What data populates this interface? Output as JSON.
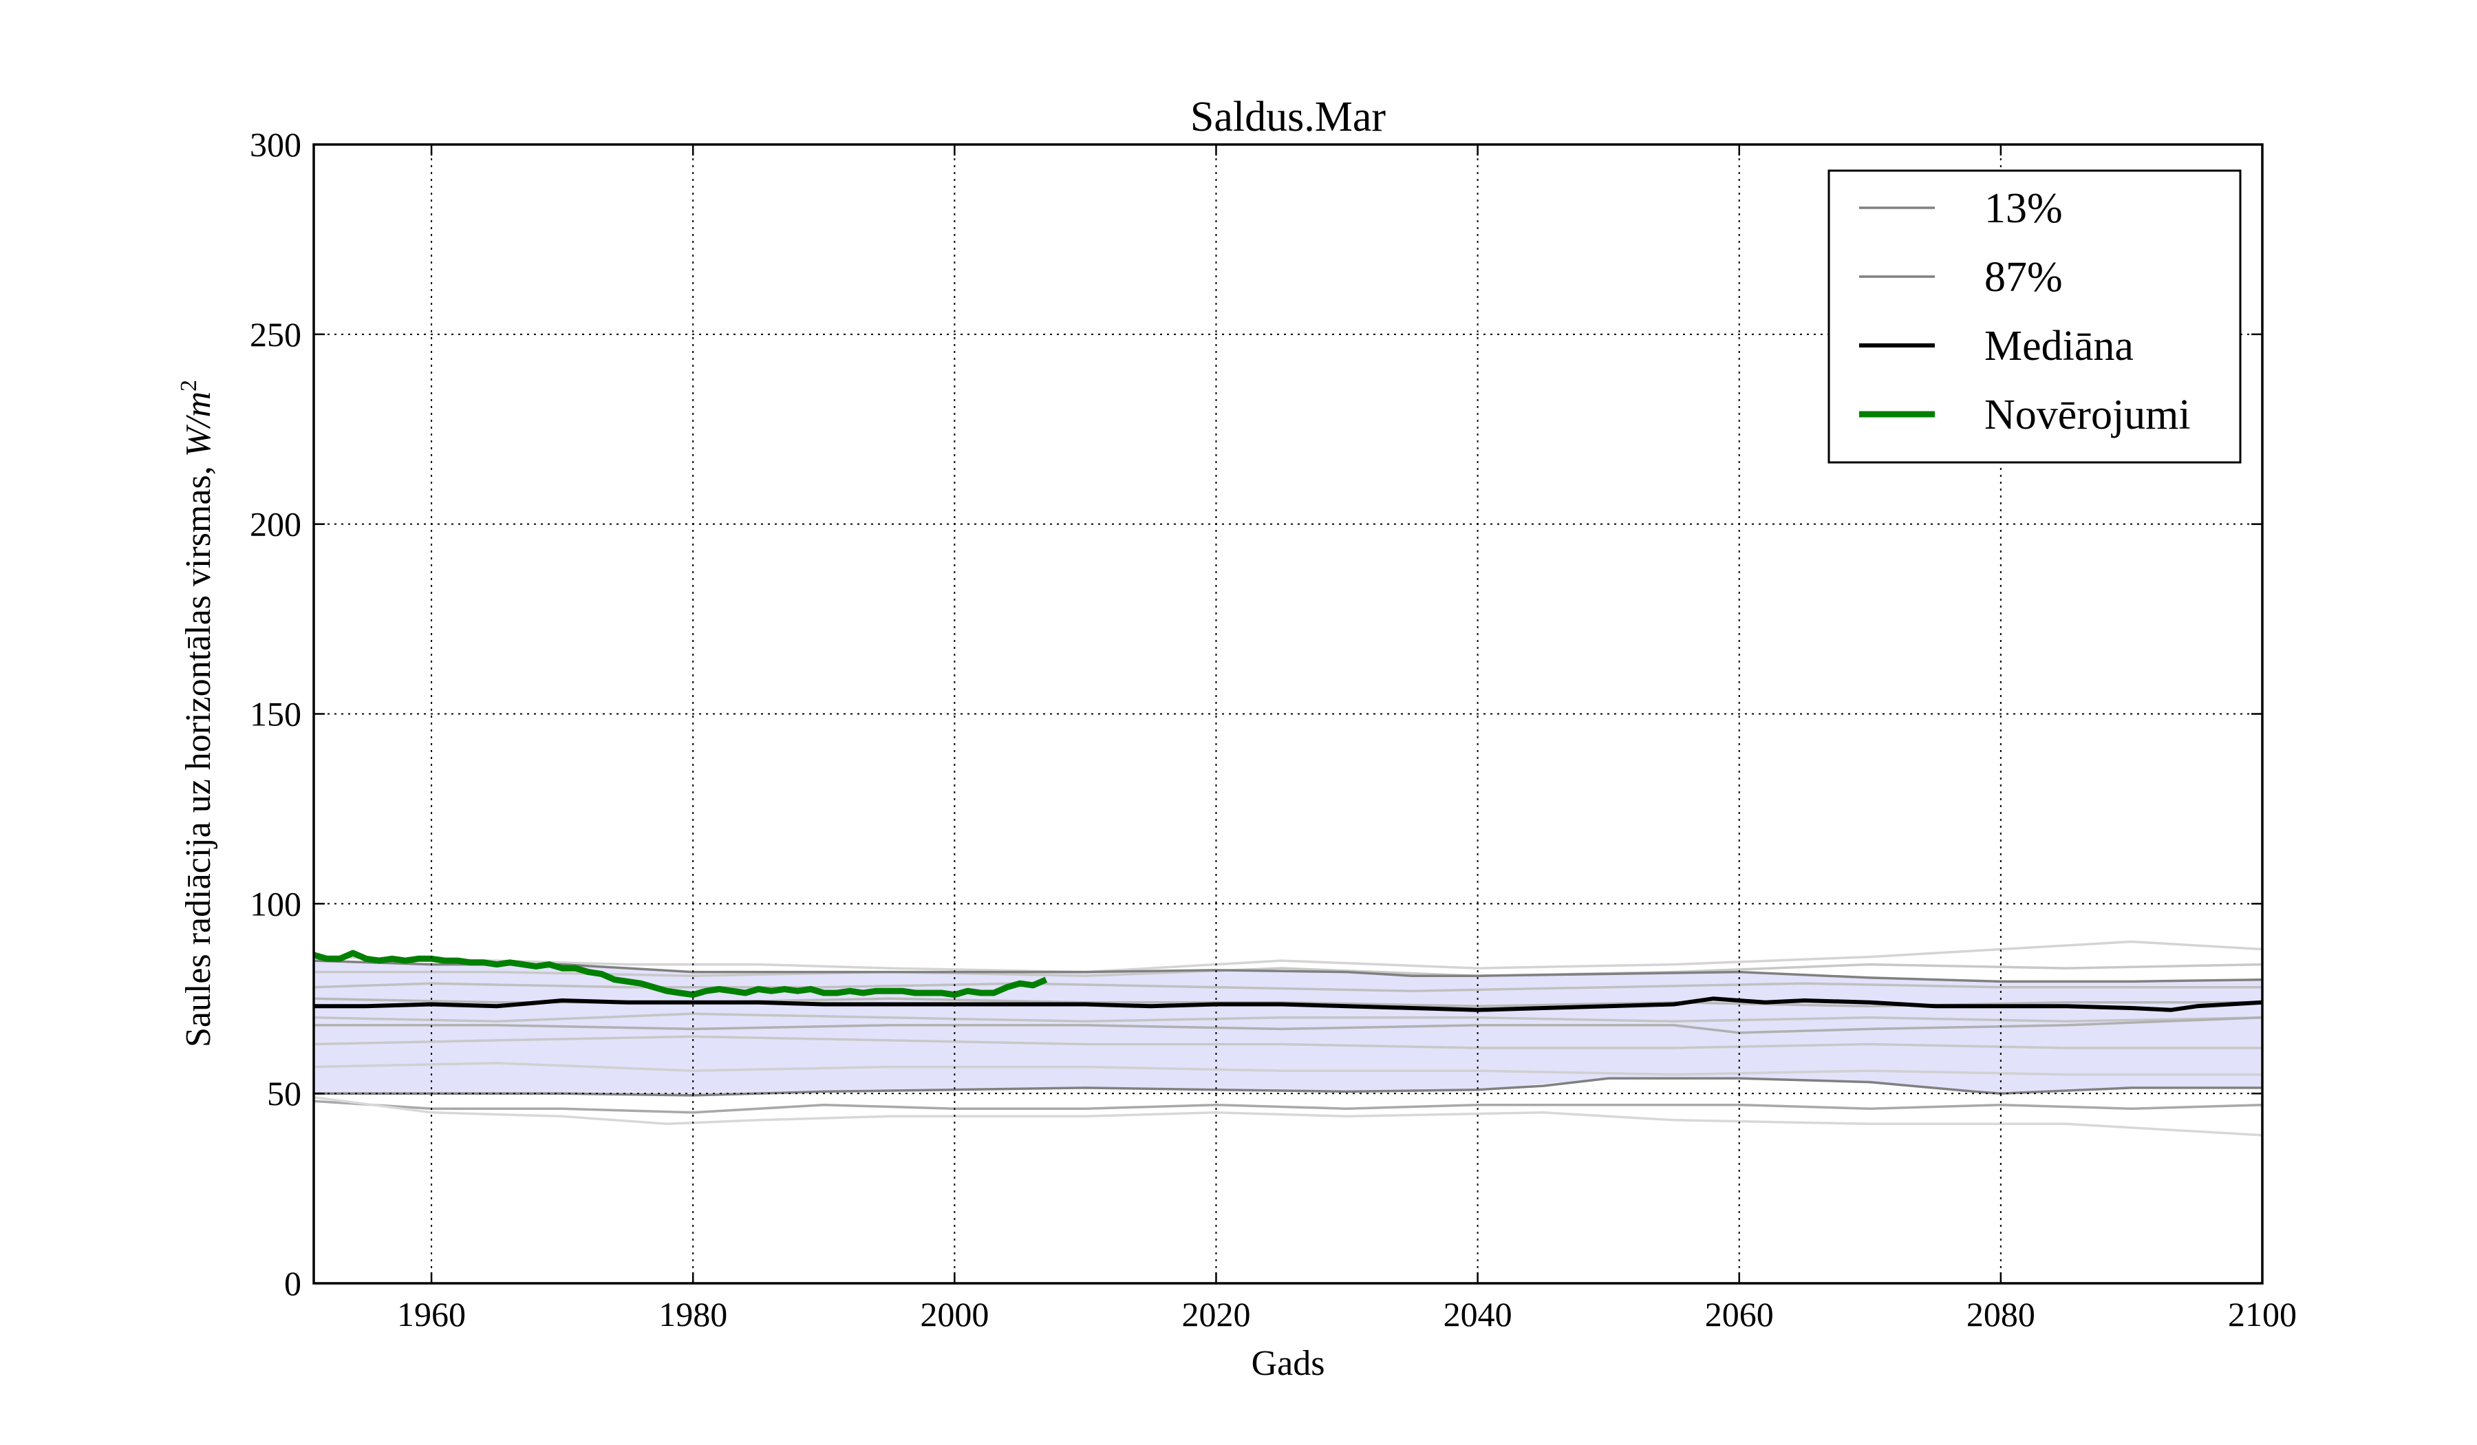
{
  "chart_data": {
    "type": "line",
    "title": "Saldus.Mar",
    "xlabel": "Gads",
    "ylabel": "Saules radiācija uz horizontālas virsmas, ",
    "ylabel_unit": "W/m",
    "ylabel_unit_exp": "2",
    "xlim": [
      1951,
      2100
    ],
    "ylim": [
      0,
      300
    ],
    "xticks": [
      1960,
      1980,
      2000,
      2020,
      2040,
      2060,
      2080,
      2100
    ],
    "yticks": [
      0,
      50,
      100,
      150,
      200,
      250,
      300
    ],
    "grid": true,
    "legend_position": "top-right",
    "band": {
      "color": "#e2e2fb",
      "x": [
        1951,
        1960,
        1970,
        1980,
        1990,
        2000,
        2010,
        2020,
        2030,
        2040,
        2050,
        2060,
        2070,
        2080,
        2090,
        2100
      ],
      "lower": [
        50,
        50,
        50,
        49.5,
        50.5,
        51,
        51.5,
        51,
        50.5,
        51,
        54,
        54,
        53,
        50,
        51.5,
        51.5
      ],
      "upper": [
        85,
        84,
        84,
        82,
        82,
        82,
        82,
        82.5,
        82,
        81,
        81.5,
        82,
        80.5,
        79.5,
        79.5,
        80
      ]
    },
    "series": [
      {
        "name": "13%",
        "role": "legend",
        "color": "#808080",
        "x": [
          1951,
          1960,
          1970,
          1980,
          1990,
          2000,
          2010,
          2020,
          2030,
          2040,
          2045,
          2050,
          2060,
          2070,
          2078,
          2080,
          2090,
          2100
        ],
        "y": [
          50,
          50,
          50,
          49.5,
          50.5,
          51,
          51.5,
          51,
          50.5,
          51,
          52,
          54,
          54,
          53,
          50.5,
          50,
          51.5,
          51.5
        ]
      },
      {
        "name": "87%",
        "role": "legend",
        "color": "#808080",
        "x": [
          1951,
          1960,
          1970,
          1980,
          1990,
          2000,
          2010,
          2020,
          2030,
          2035,
          2040,
          2050,
          2060,
          2070,
          2080,
          2090,
          2100
        ],
        "y": [
          85,
          84,
          84,
          82,
          82,
          82,
          82,
          82.5,
          82,
          81,
          81,
          81.5,
          82,
          80.5,
          79.5,
          79.5,
          80
        ]
      },
      {
        "name": "Mediāna",
        "role": "legend",
        "color": "#000000",
        "x": [
          1951,
          1955,
          1960,
          1965,
          1970,
          1975,
          1980,
          1985,
          1990,
          1995,
          2000,
          2005,
          2010,
          2015,
          2020,
          2025,
          2030,
          2035,
          2040,
          2045,
          2050,
          2055,
          2058,
          2062,
          2065,
          2070,
          2075,
          2080,
          2085,
          2090,
          2093,
          2095,
          2100
        ],
        "y": [
          73,
          73,
          73.5,
          73,
          74.5,
          74,
          74,
          74,
          73.5,
          73.5,
          73.5,
          73.5,
          73.5,
          73,
          73.5,
          73.5,
          73,
          72.5,
          72,
          72.5,
          73,
          73.5,
          75,
          74,
          74.5,
          74,
          73,
          73,
          73,
          72.5,
          72,
          73,
          74
        ]
      },
      {
        "name": "Novērojumi",
        "role": "legend",
        "color": "#008000",
        "x": [
          1951,
          1952,
          1953,
          1954,
          1955,
          1956,
          1957,
          1958,
          1959,
          1960,
          1961,
          1962,
          1963,
          1964,
          1965,
          1966,
          1967,
          1968,
          1969,
          1970,
          1971,
          1972,
          1973,
          1974,
          1975,
          1976,
          1977,
          1978,
          1979,
          1980,
          1981,
          1982,
          1983,
          1984,
          1985,
          1986,
          1987,
          1988,
          1989,
          1990,
          1991,
          1992,
          1993,
          1994,
          1995,
          1996,
          1997,
          1998,
          1999,
          2000,
          2001,
          2002,
          2003,
          2004,
          2005,
          2006,
          2007
        ],
        "y": [
          86.5,
          85.5,
          85.5,
          87,
          85.5,
          85,
          85.5,
          85,
          85.5,
          85.5,
          85,
          85,
          84.5,
          84.5,
          84,
          84.5,
          84,
          83.5,
          84,
          83,
          83,
          82,
          81.5,
          80,
          79.5,
          79,
          78,
          77,
          76.5,
          76,
          77,
          77.5,
          77,
          76.5,
          77.5,
          77,
          77.5,
          77,
          77.5,
          76.5,
          76.5,
          77,
          76.5,
          77,
          77,
          77,
          76.5,
          76.5,
          76.5,
          76,
          77,
          76.5,
          76.5,
          78,
          79,
          78.5,
          80
        ]
      },
      {
        "role": "member",
        "color": "#d4d4d4",
        "x": [
          1951,
          1965,
          1975,
          1985,
          1995,
          2010,
          2025,
          2040,
          2055,
          2070,
          2085,
          2090,
          2100
        ],
        "y": [
          86,
          85,
          84,
          84,
          83,
          82,
          85,
          83,
          84,
          86,
          89,
          90,
          88
        ]
      },
      {
        "role": "member",
        "color": "#c8c8c8",
        "x": [
          1951,
          1965,
          1980,
          1995,
          2010,
          2025,
          2040,
          2055,
          2070,
          2085,
          2100
        ],
        "y": [
          82,
          82,
          81,
          82,
          81,
          83,
          81,
          82,
          84,
          83,
          84
        ]
      },
      {
        "role": "member",
        "color": "#c0c0c0",
        "x": [
          1951,
          1960,
          1975,
          1990,
          2005,
          2020,
          2035,
          2050,
          2065,
          2080,
          2100
        ],
        "y": [
          78,
          79,
          78,
          78,
          79,
          78,
          77,
          78,
          79,
          78,
          78
        ]
      },
      {
        "role": "member",
        "color": "#b8b8b8",
        "x": [
          1951,
          1965,
          1980,
          1995,
          2010,
          2025,
          2040,
          2055,
          2070,
          2085,
          2100
        ],
        "y": [
          75,
          74,
          74,
          75,
          74,
          74,
          73,
          74,
          73,
          74,
          74
        ]
      },
      {
        "role": "member",
        "color": "#c4c4c4",
        "x": [
          1951,
          1965,
          1980,
          1995,
          2010,
          2025,
          2040,
          2055,
          2070,
          2085,
          2100
        ],
        "y": [
          70,
          69,
          71,
          70,
          69,
          70,
          70,
          69,
          70,
          69,
          70
        ]
      },
      {
        "role": "member",
        "color": "#b0b0b0",
        "x": [
          1951,
          1965,
          1980,
          1995,
          2010,
          2025,
          2040,
          2055,
          2060,
          2070,
          2085,
          2100
        ],
        "y": [
          68,
          68,
          67,
          68,
          68,
          67,
          68,
          68,
          66,
          67,
          68,
          70
        ]
      },
      {
        "role": "member",
        "color": "#c8c8c8",
        "x": [
          1951,
          1965,
          1980,
          1995,
          2010,
          2025,
          2040,
          2055,
          2070,
          2085,
          2100
        ],
        "y": [
          63,
          64,
          65,
          64,
          63,
          63,
          62,
          62,
          63,
          62,
          62
        ]
      },
      {
        "role": "member",
        "color": "#d0d0d0",
        "x": [
          1951,
          1965,
          1980,
          1995,
          2010,
          2025,
          2040,
          2055,
          2070,
          2085,
          2100
        ],
        "y": [
          57,
          58,
          56,
          57,
          57,
          56,
          56,
          55,
          56,
          55,
          55
        ]
      },
      {
        "role": "member",
        "color": "#a8a8a8",
        "x": [
          1951,
          1960,
          1970,
          1980,
          1990,
          2000,
          2010,
          2020,
          2030,
          2040,
          2050,
          2060,
          2070,
          2080,
          2090,
          2100
        ],
        "y": [
          48,
          46,
          46,
          45,
          47,
          46,
          46,
          47,
          46,
          47,
          47,
          47,
          46,
          47,
          46,
          47
        ]
      },
      {
        "role": "member",
        "color": "#d8d8d8",
        "x": [
          1951,
          1960,
          1970,
          1978,
          1985,
          1995,
          2010,
          2020,
          2030,
          2045,
          2055,
          2070,
          2085,
          2095,
          2100
        ],
        "y": [
          49,
          45,
          44,
          42,
          43,
          44,
          44,
          45,
          44,
          45,
          43,
          42,
          42,
          40,
          39
        ]
      }
    ]
  }
}
